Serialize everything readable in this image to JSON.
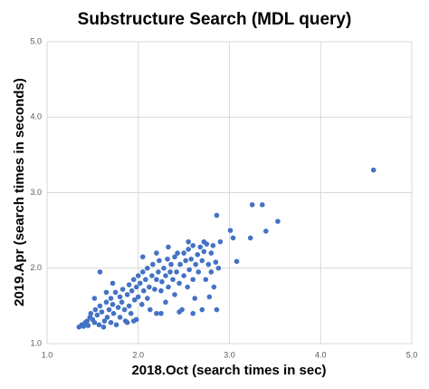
{
  "chart_data": {
    "type": "scatter",
    "title": "Substructure Search (MDL query)",
    "x_label": "2018.Oct (search times in sec)",
    "y_label": "2019.Apr (search times in seconds)",
    "xlim": [
      1,
      5
    ],
    "ylim": [
      1,
      5
    ],
    "xticks": [
      {
        "value": 1,
        "label": "1.0"
      },
      {
        "value": 2,
        "label": "2.0"
      },
      {
        "value": 3,
        "label": "3.0"
      },
      {
        "value": 4,
        "label": "4.0"
      },
      {
        "value": 5,
        "label": "5.0"
      }
    ],
    "yticks": [
      {
        "value": 1,
        "label": "1.0"
      },
      {
        "value": 2,
        "label": "2.0"
      },
      {
        "value": 3,
        "label": "3.0"
      },
      {
        "value": 4,
        "label": "4.0"
      },
      {
        "value": 5,
        "label": "5.0"
      }
    ],
    "grid": true,
    "color": "#4472c4",
    "x": [
      1.35,
      1.38,
      1.4,
      1.42,
      1.44,
      1.45,
      1.47,
      1.48,
      1.5,
      1.52,
      1.53,
      1.55,
      1.57,
      1.58,
      1.6,
      1.62,
      1.63,
      1.65,
      1.66,
      1.68,
      1.7,
      1.7,
      1.72,
      1.73,
      1.75,
      1.76,
      1.78,
      1.8,
      1.8,
      1.82,
      1.83,
      1.85,
      1.86,
      1.88,
      1.9,
      1.9,
      1.92,
      1.93,
      1.95,
      1.96,
      1.98,
      1.98,
      2.0,
      2.0,
      2.02,
      2.04,
      2.05,
      2.06,
      2.08,
      2.1,
      2.1,
      2.12,
      2.13,
      2.15,
      2.16,
      2.18,
      2.2,
      2.2,
      2.22,
      2.23,
      2.25,
      2.26,
      2.28,
      2.3,
      2.3,
      2.32,
      2.33,
      2.35,
      2.36,
      2.38,
      2.4,
      2.4,
      2.42,
      2.43,
      2.45,
      2.46,
      2.48,
      2.5,
      2.5,
      2.52,
      2.54,
      2.55,
      2.56,
      2.58,
      2.6,
      2.6,
      2.62,
      2.63,
      2.65,
      2.66,
      2.68,
      2.7,
      2.7,
      2.72,
      2.74,
      2.75,
      2.77,
      2.78,
      2.8,
      2.8,
      2.82,
      2.83,
      2.85,
      2.86,
      2.88,
      2.9,
      1.88,
      1.95,
      2.25,
      2.45,
      2.6,
      1.58,
      1.65,
      1.52,
      1.72,
      2.05,
      2.2,
      2.33,
      2.55,
      2.72,
      4.58,
      3.53,
      3.36,
      3.25,
      3.4,
      3.23,
      3.04,
      3.01,
      3.08,
      2.86
    ],
    "y": [
      1.22,
      1.25,
      1.23,
      1.28,
      1.3,
      1.24,
      1.35,
      1.4,
      1.32,
      1.28,
      1.45,
      1.38,
      1.25,
      1.5,
      1.42,
      1.22,
      1.3,
      1.55,
      1.35,
      1.45,
      1.28,
      1.6,
      1.52,
      1.4,
      1.68,
      1.25,
      1.48,
      1.62,
      1.35,
      1.55,
      1.72,
      1.45,
      1.3,
      1.65,
      1.78,
      1.5,
      1.4,
      1.7,
      1.85,
      1.58,
      1.32,
      1.75,
      1.9,
      1.62,
      1.8,
      1.52,
      1.95,
      1.7,
      1.85,
      1.6,
      2.0,
      1.75,
      1.45,
      1.9,
      2.05,
      1.72,
      1.85,
      1.4,
      1.95,
      2.1,
      1.7,
      1.82,
      2.0,
      1.9,
      1.55,
      2.12,
      1.75,
      1.95,
      2.05,
      1.85,
      2.15,
      1.65,
      1.95,
      2.2,
      1.8,
      2.05,
      1.45,
      2.2,
      1.9,
      2.1,
      1.75,
      2.25,
      1.98,
      2.12,
      1.85,
      2.3,
      1.6,
      2.05,
      2.18,
      1.95,
      2.28,
      2.1,
      1.45,
      2.22,
      1.85,
      2.32,
      2.05,
      1.62,
      2.2,
      1.95,
      2.3,
      1.75,
      2.08,
      1.45,
      2.0,
      2.35,
      1.28,
      1.3,
      1.4,
      1.42,
      1.4,
      1.95,
      1.68,
      1.6,
      1.8,
      2.15,
      2.2,
      2.28,
      2.35,
      2.35,
      3.3,
      2.62,
      2.84,
      2.84,
      2.49,
      2.4,
      2.4,
      2.5,
      2.09,
      2.7
    ]
  }
}
